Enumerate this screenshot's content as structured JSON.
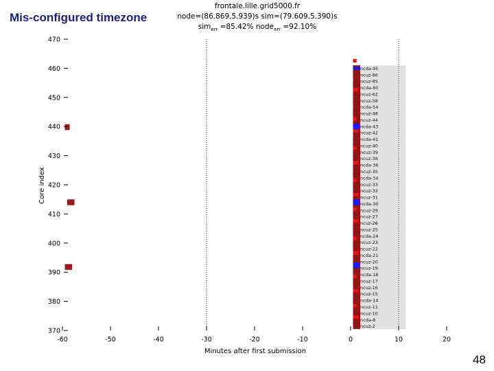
{
  "slide": {
    "title": "Mis-configured timezone",
    "page_number": "48"
  },
  "header": {
    "host": "frontale.lille.grid5000.fr",
    "stats_line": "node=(86.869,5.939)s sim=(79.609,5.390)s",
    "sim_label": "sim",
    "sim_sub": "err",
    "sim_value": " =85.42% ",
    "node_label": "node",
    "node_sub": "err",
    "node_value": " =92.10%"
  },
  "chart_data": {
    "type": "scatter",
    "title": "",
    "xlabel": "Minutes after first submission",
    "ylabel": "Core index",
    "xlim": [
      -60,
      20
    ],
    "ylim": [
      370,
      470
    ],
    "x_ticks": [
      -60,
      -50,
      -40,
      -30,
      -20,
      -10,
      0,
      10,
      20
    ],
    "y_ticks": [
      370,
      380,
      390,
      400,
      410,
      420,
      430,
      440,
      450,
      460,
      470
    ],
    "reference_lines_x": [
      -30,
      10
    ],
    "colors": {
      "job_red": "#a01818",
      "bright_red": "#ee1111",
      "blue": "#1a1aff",
      "background_band": "#e2e2e2",
      "dark_stripe": "#4a0000"
    },
    "early_jobs": [
      {
        "x_start": -59.5,
        "x_end": -58.5,
        "core_low": 438.8,
        "core_high": 440.8
      },
      {
        "x_start": -59.0,
        "x_end": -57.5,
        "core_low": 413.0,
        "core_high": 415.0
      },
      {
        "x_start": -59.5,
        "x_end": -58.0,
        "core_low": 390.8,
        "core_high": 392.8
      }
    ],
    "background_band": {
      "x_start": 0.5,
      "x_end": 11.5,
      "core_low": 370.5,
      "core_high": 461.0
    },
    "job_block": {
      "x_start": 0.5,
      "x_end": 2.0,
      "core_low": 370.5,
      "core_high": 461.0
    },
    "blue_jobs": [
      {
        "x_start": 0.5,
        "x_end": 2.0,
        "core_low": 459.5,
        "core_high": 460.5
      },
      {
        "x_start": 0.5,
        "x_end": 1.9,
        "core_low": 439.0,
        "core_high": 441.0
      },
      {
        "x_start": 0.5,
        "x_end": 1.9,
        "core_low": 413.0,
        "core_high": 415.0
      },
      {
        "x_start": 0.5,
        "x_end": 1.9,
        "core_low": 391.3,
        "core_high": 393.3
      }
    ],
    "node_labels": [
      "ncda-95",
      "ncuz-86",
      "ncuz-85",
      "ncda-80",
      "ncuz-62",
      "ncuz-58",
      "ncda-54",
      "ncuz-48",
      "ncuz-44",
      "ncda-43",
      "ncuz-42",
      "ncda-41",
      "ncuz-40",
      "ncuz-39",
      "ncuz-38",
      "ncda-36",
      "ncuz-35",
      "ncda-34",
      "ncuz-33",
      "ncuz-32",
      "ncuz-31",
      "ncda-30",
      "ncuz-29",
      "ncuz-27",
      "ncuz-26",
      "ncuz-25",
      "ncda-24",
      "ncuz-23",
      "ncuz-22",
      "ncda-21",
      "ncuz-20",
      "ncuz-19",
      "ncda-18",
      "ncuz-17",
      "ncuz-16",
      "ncuz-15",
      "ncda-14",
      "ncuz-11",
      "ncuz-10",
      "ncda-8",
      "ncuz-2"
    ]
  }
}
